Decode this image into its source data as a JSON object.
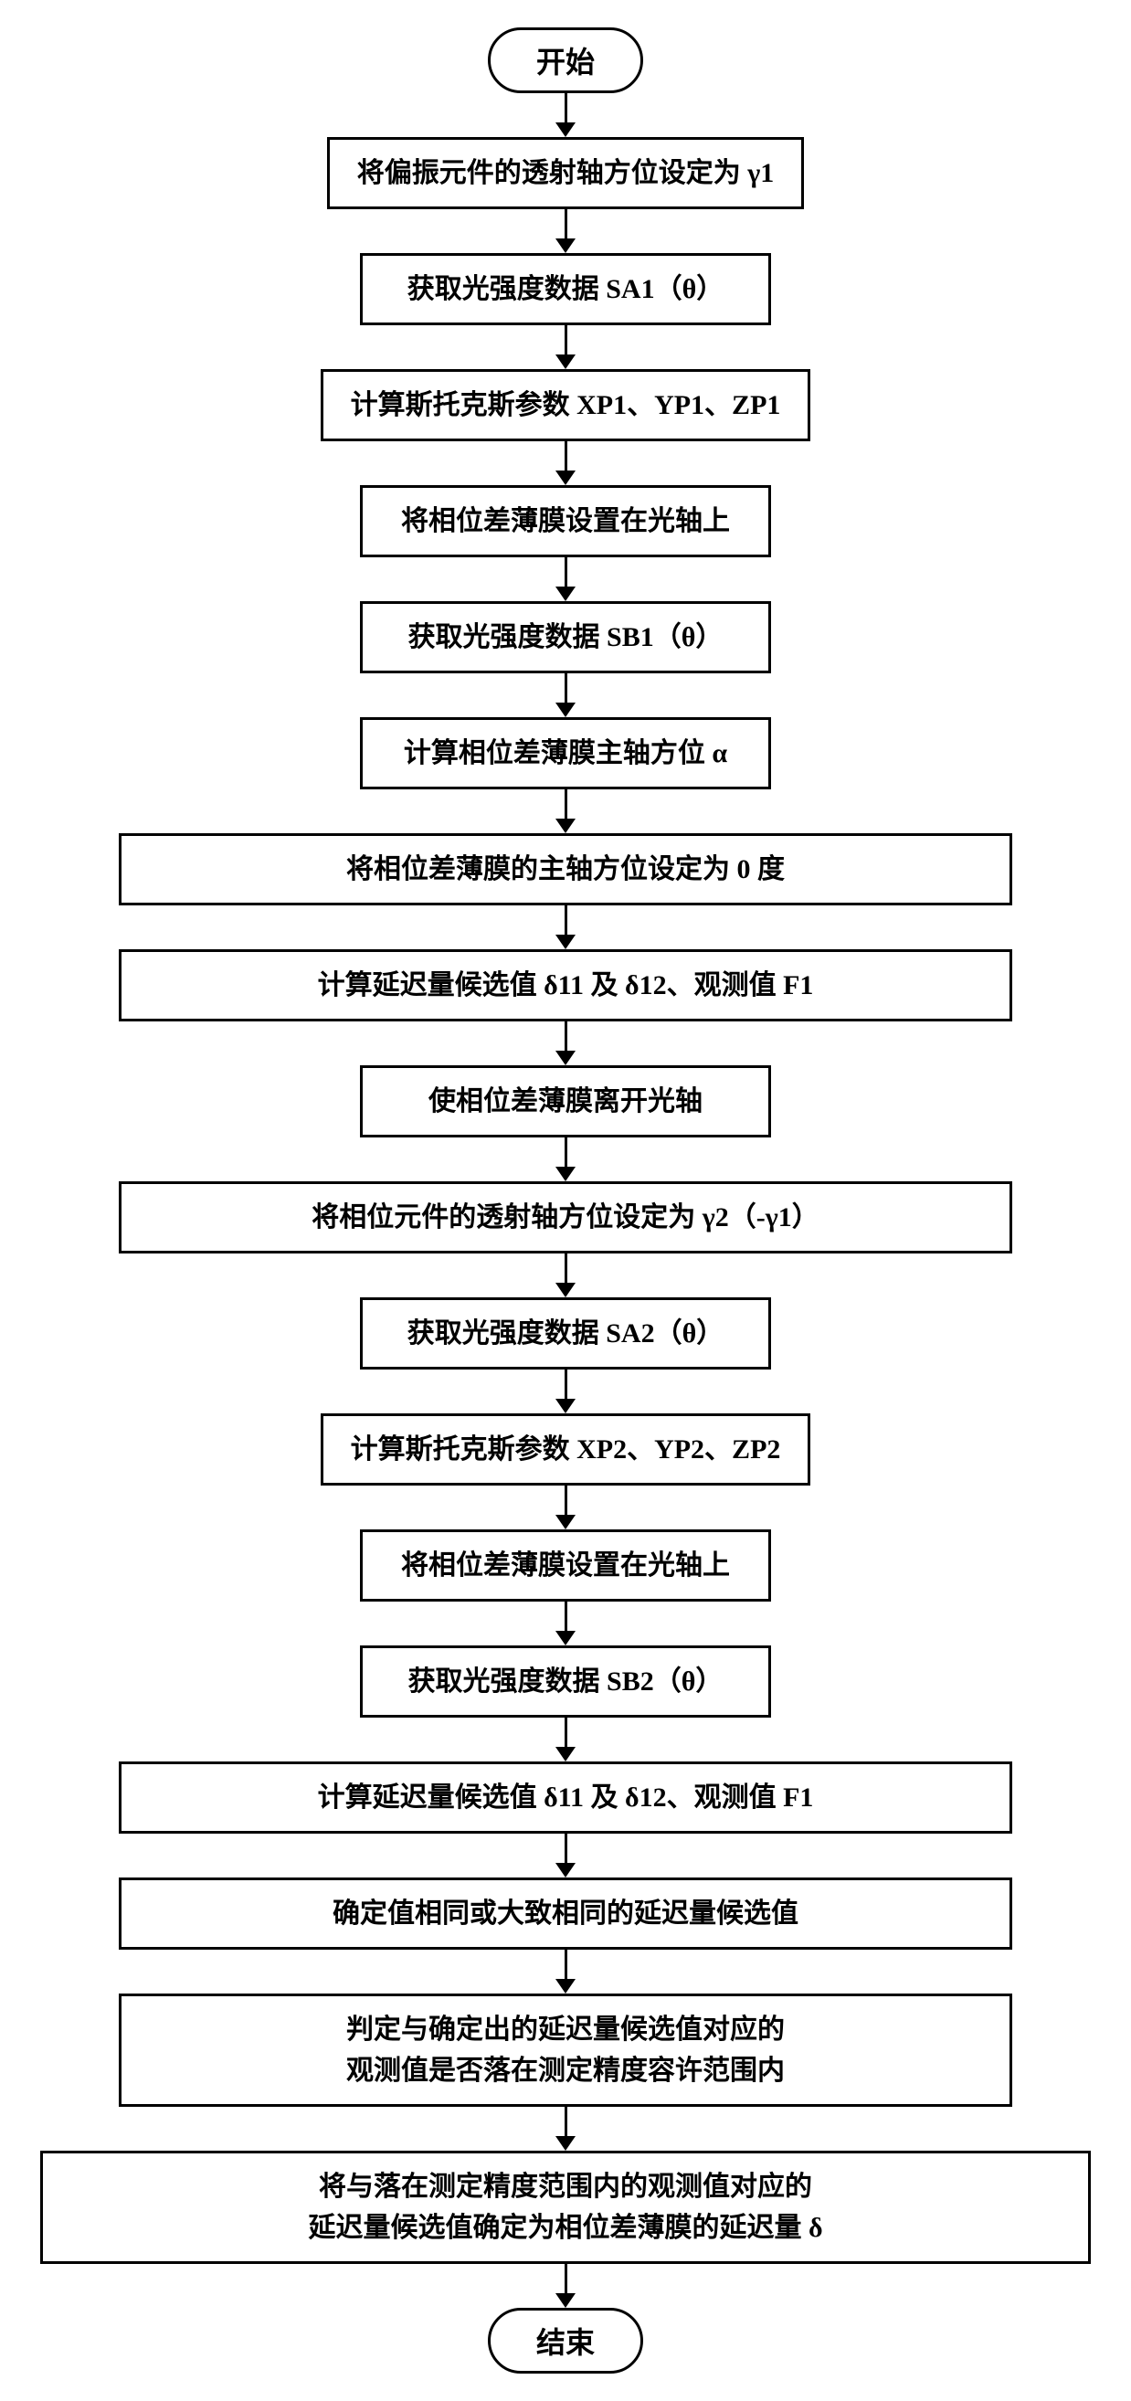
{
  "flowchart": {
    "type": "flowchart",
    "background_color": "#ffffff",
    "border_color": "#000000",
    "text_color": "#000000",
    "border_width": 3,
    "font_size_terminal": 32,
    "font_size_process": 30,
    "terminal_border_radius": 40,
    "arrow_head_size": 16,
    "start": "开始",
    "end": "结束",
    "steps": [
      {
        "text": "将偏振元件的透射轴方位设定为 γ1",
        "width": "narrow"
      },
      {
        "text": "获取光强度数据 SA1（θ）",
        "width": "narrow"
      },
      {
        "text": "计算斯托克斯参数 XP1、YP1、ZP1",
        "width": "narrow"
      },
      {
        "text": "将相位差薄膜设置在光轴上",
        "width": "narrow"
      },
      {
        "text": "获取光强度数据 SB1（θ）",
        "width": "narrow"
      },
      {
        "text": "计算相位差薄膜主轴方位 α",
        "width": "narrow"
      },
      {
        "text": "将相位差薄膜的主轴方位设定为 0 度",
        "width": "medium"
      },
      {
        "text": "计算延迟量候选值 δ11 及 δ12、观测值 F1",
        "width": "medium"
      },
      {
        "text": "使相位差薄膜离开光轴",
        "width": "narrow"
      },
      {
        "text": "将相位元件的透射轴方位设定为 γ2（-γ1）",
        "width": "medium"
      },
      {
        "text": "获取光强度数据 SA2（θ）",
        "width": "narrow"
      },
      {
        "text": "计算斯托克斯参数 XP2、YP2、ZP2",
        "width": "narrow"
      },
      {
        "text": "将相位差薄膜设置在光轴上",
        "width": "narrow"
      },
      {
        "text": "获取光强度数据 SB2（θ）",
        "width": "narrow"
      },
      {
        "text": "计算延迟量候选值 δ11 及 δ12、观测值 F1",
        "width": "medium"
      },
      {
        "text": "确定值相同或大致相同的延迟量候选值",
        "width": "medium"
      },
      {
        "text": "判定与确定出的延迟量候选值对应的\n观测值是否落在测定精度容许范围内",
        "width": "medium"
      },
      {
        "text": "将与落在测定精度范围内的观测值对应的\n延迟量候选值确定为相位差薄膜的延迟量 δ",
        "width": "wide"
      }
    ]
  }
}
